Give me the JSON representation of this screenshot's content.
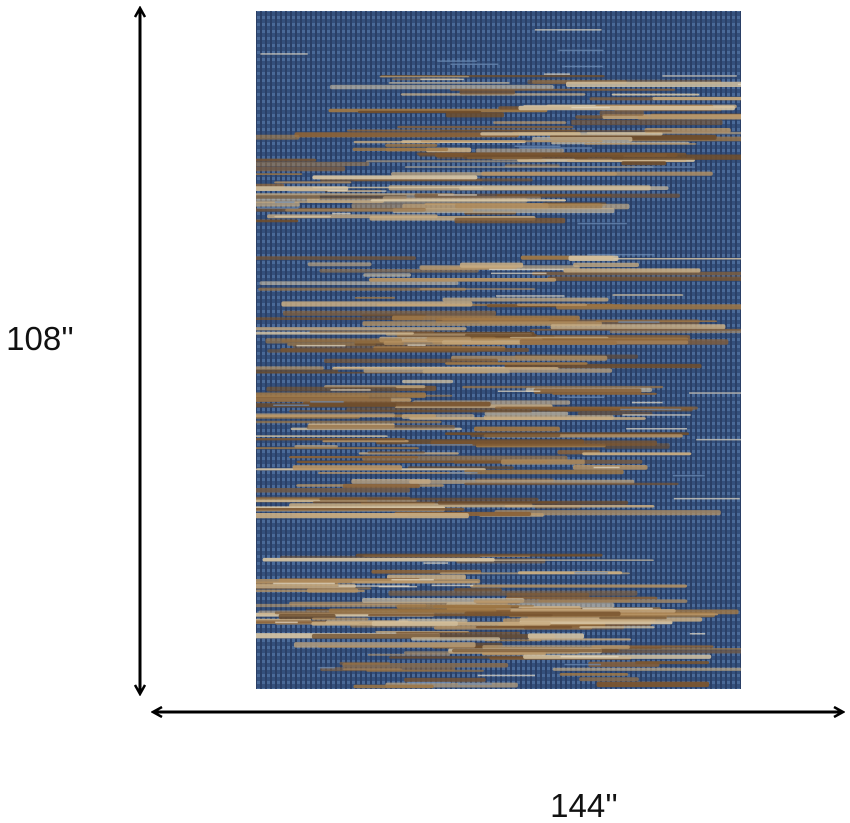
{
  "dimensions": {
    "height": "108''",
    "width": "144''"
  }
}
